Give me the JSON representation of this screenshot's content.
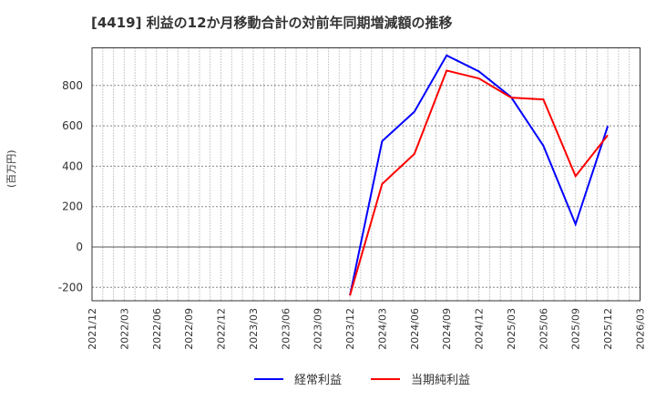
{
  "chart_data": {
    "type": "line",
    "title": "[4419]  利益の12か月移動合計の対前年同期増減額の推移",
    "xlabel": "",
    "ylabel": "(百万円)",
    "ylim": [
      -270,
      990
    ],
    "yticks": [
      -200,
      0,
      200,
      400,
      600,
      800
    ],
    "x_ticks": [
      "2021/12",
      "2022/03",
      "2022/06",
      "2022/09",
      "2022/12",
      "2023/03",
      "2023/06",
      "2023/09",
      "2023/12",
      "2024/03",
      "2024/06",
      "2024/09",
      "2024/12",
      "2025/03",
      "2025/06",
      "2025/09",
      "2025/12",
      "2026/03"
    ],
    "grid": true,
    "legend_position": "bottom",
    "x": [
      "2023/12",
      "2024/03",
      "2024/06",
      "2024/09",
      "2024/12",
      "2025/03",
      "2025/06",
      "2025/09",
      "2025/12"
    ],
    "series": [
      {
        "name": "経常利益",
        "color": "#0000ff",
        "values": [
          -240,
          524,
          670,
          949,
          870,
          742,
          501,
          113,
          599
        ]
      },
      {
        "name": "当期純利益",
        "color": "#ff0000",
        "values": [
          -240,
          312,
          461,
          874,
          835,
          740,
          731,
          351,
          554
        ]
      }
    ]
  },
  "legend": [
    {
      "label": "経常利益",
      "color": "#0000ff"
    },
    {
      "label": "当期純利益",
      "color": "#ff0000"
    }
  ]
}
